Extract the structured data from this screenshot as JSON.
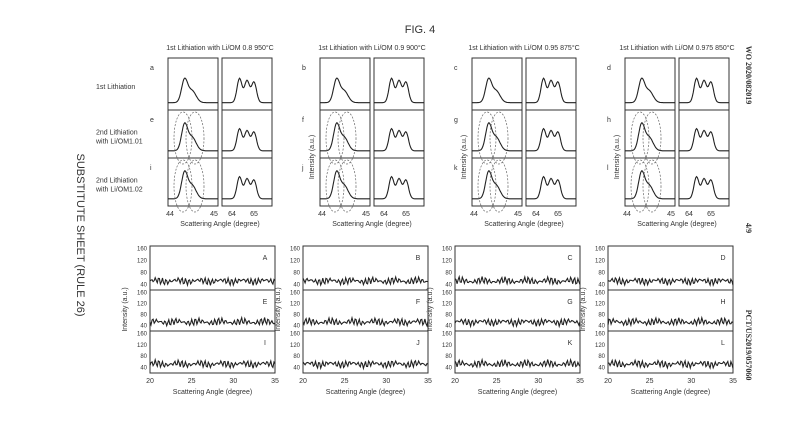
{
  "header": {
    "figure_label": "FIG. 4",
    "side_left": "SUBSTITUTE SHEET (RULE 26)",
    "side_top_right": "WO 2020/082019",
    "side_mid_right": "4/9",
    "side_bottom_right": "PCT/US2019/057060"
  },
  "top_panels": {
    "row_labels": [
      [
        "1st Lithiation"
      ],
      [
        "2nd Lithiation",
        "with Li/OM1.01"
      ],
      [
        "2nd Lithiation",
        "with Li/OM1.02"
      ]
    ],
    "columns": [
      {
        "title": "1st Lithiation with Li/OM 0.8 950°C",
        "letters": [
          "a",
          "e",
          "i"
        ]
      },
      {
        "title": "1st Lithiation with Li/OM 0.9 900°C",
        "letters": [
          "b",
          "f",
          "j"
        ]
      },
      {
        "title": "1st Lithiation with Li/OM 0.95 875°C",
        "letters": [
          "c",
          "g",
          "k"
        ]
      },
      {
        "title": "1st Lithiation with Li/OM 0.975 850°C",
        "letters": [
          "d",
          "h",
          "l"
        ]
      }
    ],
    "y_label": "Intensity (a.u.)",
    "x_label": "Scattering Angle (degree)",
    "x_ticks_left": [
      "44",
      "45"
    ],
    "x_ticks_right": [
      "64",
      "65"
    ]
  },
  "bottom_panels": {
    "columns": [
      {
        "letters": [
          "A",
          "E",
          "I"
        ]
      },
      {
        "letters": [
          "B",
          "F",
          "J"
        ]
      },
      {
        "letters": [
          "C",
          "G",
          "K"
        ]
      },
      {
        "letters": [
          "D",
          "H",
          "L"
        ]
      }
    ],
    "y_label": "Intensity (a.u.)",
    "x_label": "Scattering Angle (degree)",
    "y_ticks": [
      "160",
      "120",
      "80",
      "40"
    ],
    "x_ticks": [
      "20",
      "25",
      "30",
      "35"
    ]
  }
}
